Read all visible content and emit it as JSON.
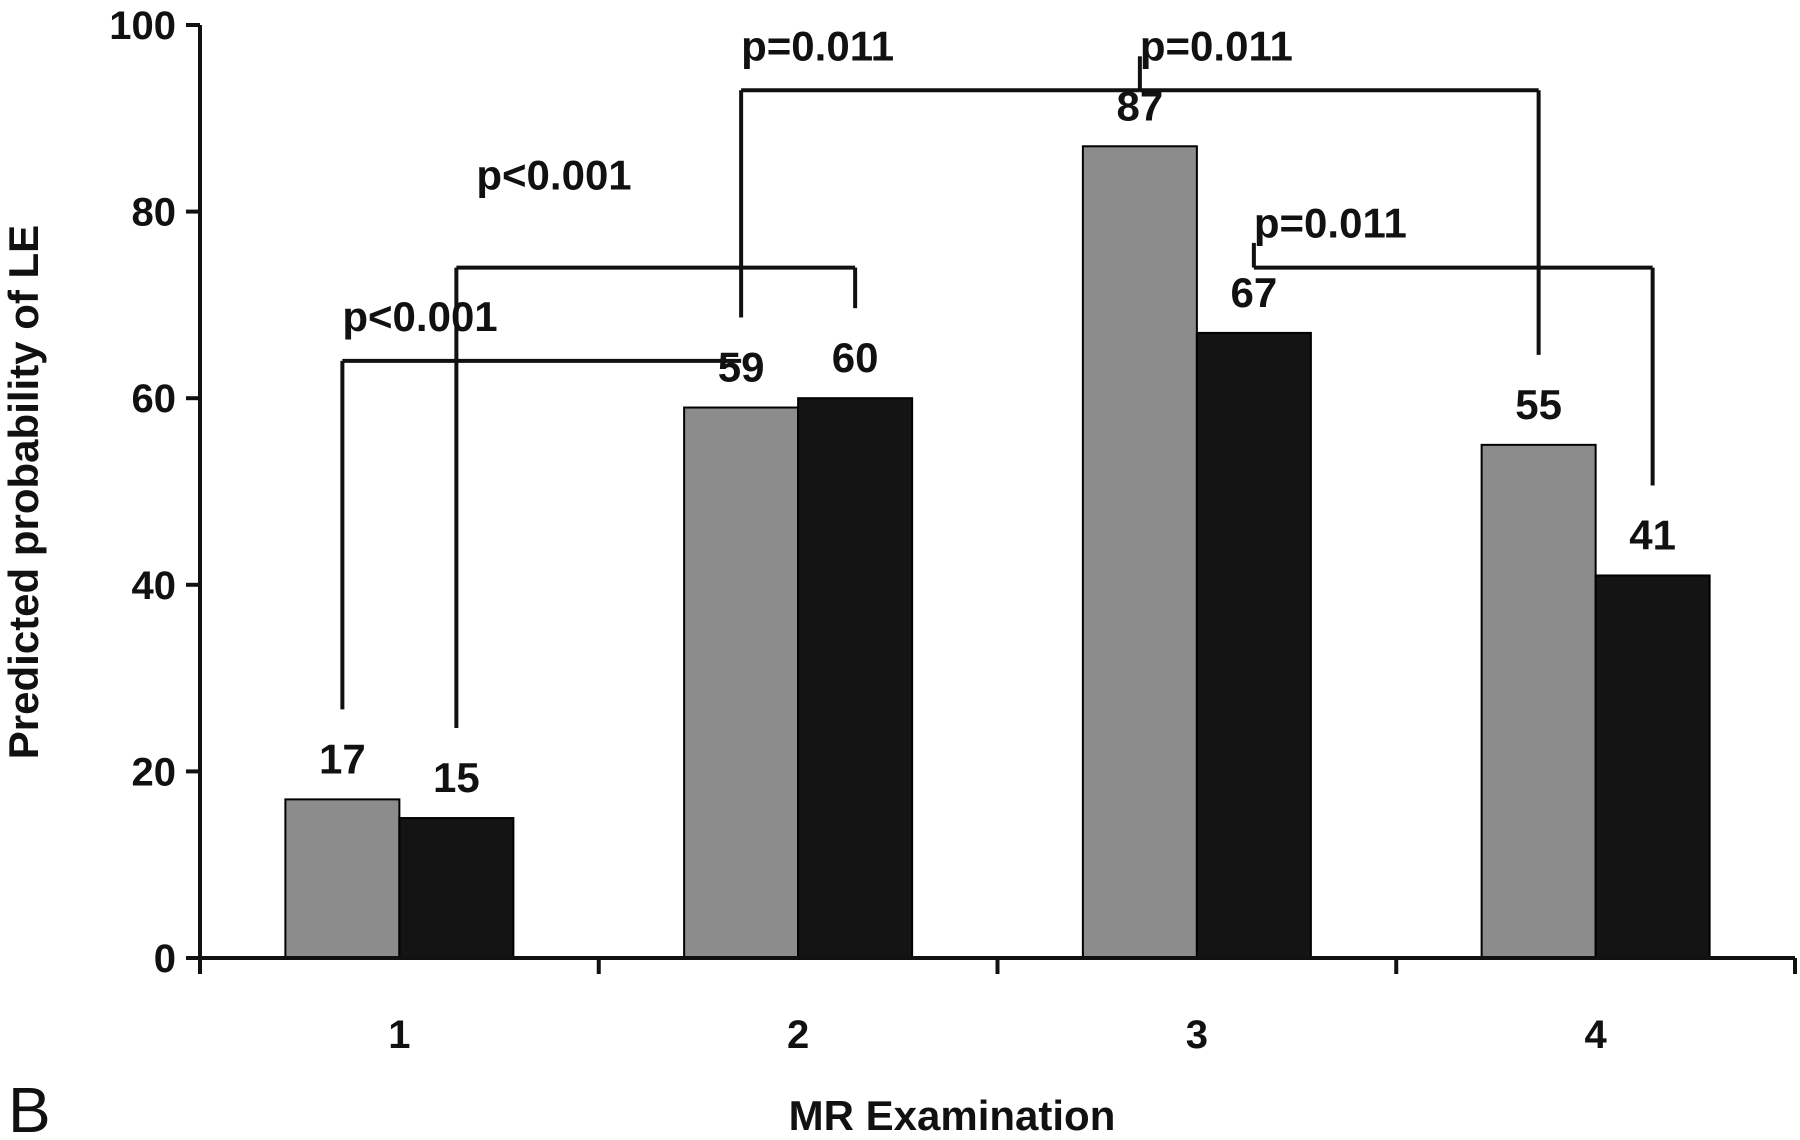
{
  "chart_data": {
    "type": "bar",
    "title": "",
    "xlabel": "MR Examination",
    "ylabel": "Predicted probability of LE",
    "panel_letter": "B",
    "categories": [
      "1",
      "2",
      "3",
      "4"
    ],
    "ylim": [
      0,
      100
    ],
    "yticks": [
      0,
      20,
      40,
      60,
      80,
      100
    ],
    "grid": false,
    "legend": "none",
    "series": [
      {
        "color": "#8c8c8c",
        "values": [
          17,
          59,
          87,
          55
        ]
      },
      {
        "color": "#141414",
        "values": [
          15,
          60,
          67,
          41
        ]
      }
    ],
    "annotations": [
      {
        "label": "p<0.001",
        "from": [
          0,
          0
        ],
        "to": [
          1,
          0
        ]
      },
      {
        "label": "p<0.001",
        "from": [
          0,
          1
        ],
        "to": [
          1,
          1
        ]
      },
      {
        "label": "p=0.011",
        "from": [
          1,
          0
        ],
        "to": [
          2,
          0
        ]
      },
      {
        "label": "p=0.011",
        "from": [
          2,
          0
        ],
        "to": [
          3,
          0
        ]
      },
      {
        "label": "p=0.011",
        "from": [
          2,
          1
        ],
        "to": [
          3,
          1
        ]
      }
    ]
  }
}
